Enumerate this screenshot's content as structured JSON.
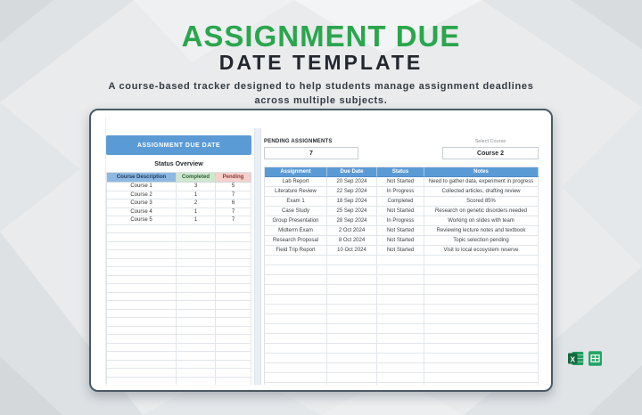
{
  "header": {
    "title_line1": "ASSIGNMENT DUE",
    "title_line2": "DATE TEMPLATE",
    "subtitle_line1": "A course-based tracker designed to help students manage assignment deadlines",
    "subtitle_line2": "across multiple subjects."
  },
  "colors": {
    "accent_green": "#2aa64d",
    "banner_blue": "#5b9bd5",
    "header_blue_cell": "#8db8e2",
    "header_green_cell": "#cfe8cd",
    "header_pink_cell": "#f6d0cc"
  },
  "left_panel": {
    "banner": "ASSIGNMENT DUE DATE",
    "section_title": "Status Overview",
    "columns": [
      "Course Description",
      "Completed",
      "Pending"
    ],
    "rows": [
      [
        "Course 1",
        "3",
        "5"
      ],
      [
        "Course 2",
        "1",
        "7"
      ],
      [
        "Course 3",
        "2",
        "6"
      ],
      [
        "Course 4",
        "1",
        "7"
      ],
      [
        "Course 5",
        "1",
        "7"
      ]
    ]
  },
  "right_panel": {
    "pending_label": "PENDING ASSIGNMENTS",
    "pending_value": "7",
    "select_label": "Select Course",
    "select_value": "Course 2",
    "columns": [
      "Assignment",
      "Due Date",
      "Status",
      "Notes"
    ],
    "rows": [
      [
        "Lab Report",
        "20 Sep 2024",
        "Not Started",
        "Need to gather data, experiment in progress"
      ],
      [
        "Literature Review",
        "22 Sep 2024",
        "In Progress",
        "Collected articles, drafting review"
      ],
      [
        "Exam 1",
        "18 Sep 2024",
        "Completed",
        "Scored 85%"
      ],
      [
        "Case Study",
        "25 Sep 2024",
        "Not Started",
        "Research on genetic disorders needed"
      ],
      [
        "Group Presentation",
        "28 Sep 2024",
        "In Progress",
        "Working on slides with team"
      ],
      [
        "Midterm Exam",
        "2 Oct 2024",
        "Not Started",
        "Reviewing lecture notes and textbook"
      ],
      [
        "Research Proposal",
        "8 Oct 2024",
        "Not Started",
        "Topic selection pending"
      ],
      [
        "Field Trip Report",
        "10 Oct 2024",
        "Not Started",
        "Visit to local ecosystem reserve"
      ]
    ]
  },
  "footer": {
    "excel_icon": "excel-icon",
    "sheets_icon": "google-sheets-icon",
    "excel_letter": "X"
  }
}
